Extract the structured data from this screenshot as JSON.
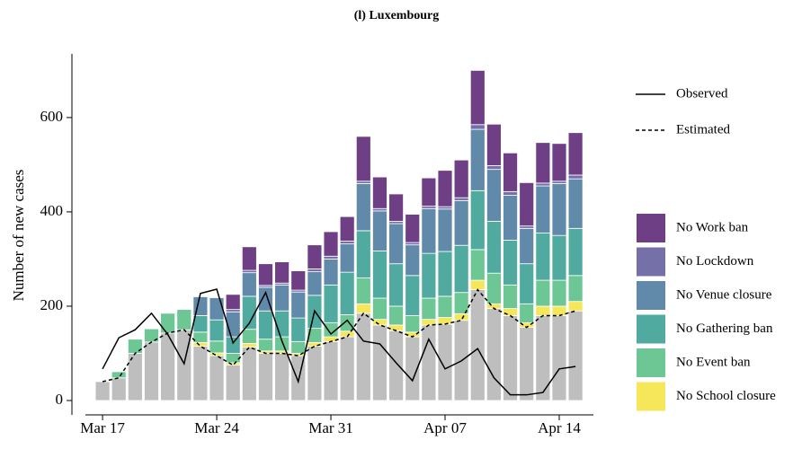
{
  "chart_data": {
    "type": "bar",
    "stacked": true,
    "title": "(l) Luxembourg",
    "y_label": "Number of new cases",
    "categories": [
      "Mar 17",
      null,
      null,
      null,
      null,
      null,
      null,
      "Mar 24",
      null,
      null,
      null,
      null,
      null,
      null,
      "Mar 31",
      null,
      null,
      null,
      null,
      null,
      null,
      "Apr 07",
      null,
      null,
      null,
      null,
      null,
      null,
      "Apr 14",
      null
    ],
    "ylim": [
      -30.5,
      735
    ],
    "yticks": [
      0,
      200,
      400,
      600
    ],
    "series": [
      {
        "color": "#bebebe",
        "values": [
          40,
          48,
          100,
          124,
          143,
          150,
          115,
          95,
          75,
          113,
          100,
          100,
          95,
          115,
          125,
          135,
          185,
          160,
          148,
          135,
          160,
          162,
          170,
          235,
          195,
          180,
          155,
          180,
          180,
          190
        ]
      },
      {
        "name": "No School closure",
        "color": "#f5e65a",
        "values": [
          0,
          0,
          0,
          0,
          0,
          0,
          8,
          6,
          5,
          8,
          5,
          5,
          5,
          8,
          10,
          12,
          20,
          12,
          12,
          10,
          12,
          14,
          14,
          20,
          10,
          15,
          10,
          20,
          20,
          20
        ]
      },
      {
        "name": "No Event ban",
        "color": "#6cc795",
        "values": [
          0,
          13,
          30,
          28,
          42,
          43,
          22,
          25,
          20,
          30,
          25,
          30,
          25,
          30,
          30,
          35,
          55,
          45,
          40,
          35,
          45,
          45,
          45,
          65,
          65,
          50,
          40,
          55,
          55,
          55
        ]
      },
      {
        "name": "No Gathering ban",
        "color": "#50aaa0",
        "values": [
          0,
          0,
          0,
          0,
          0,
          0,
          35,
          45,
          35,
          70,
          60,
          55,
          50,
          70,
          80,
          90,
          100,
          100,
          90,
          85,
          95,
          95,
          100,
          125,
          110,
          95,
          85,
          100,
          95,
          100
        ]
      },
      {
        "name": "No Venue closure",
        "color": "#6189a9",
        "values": [
          0,
          0,
          0,
          0,
          0,
          0,
          40,
          47,
          53,
          50,
          50,
          55,
          55,
          50,
          55,
          60,
          100,
          85,
          85,
          65,
          95,
          90,
          95,
          130,
          110,
          95,
          75,
          100,
          110,
          105
        ]
      },
      {
        "name": "No Lockdown",
        "color": "#7570a8",
        "values": [
          0,
          0,
          0,
          0,
          0,
          0,
          0,
          0,
          5,
          5,
          4,
          4,
          4,
          6,
          6,
          6,
          5,
          5,
          5,
          5,
          5,
          5,
          6,
          10,
          8,
          8,
          5,
          6,
          5,
          8
        ]
      },
      {
        "name": "No Work ban",
        "color": "#6f3f85",
        "values": [
          0,
          0,
          0,
          0,
          0,
          0,
          0,
          0,
          32,
          50,
          46,
          45,
          41,
          51,
          52,
          52,
          95,
          67,
          58,
          60,
          60,
          77,
          80,
          115,
          88,
          82,
          92,
          86,
          80,
          90
        ]
      }
    ],
    "lines": [
      {
        "name": "Observed",
        "dashed": false,
        "color": "#000000",
        "values": [
          67,
          133,
          150,
          185,
          140,
          78,
          227,
          236,
          122,
          164,
          229,
          126,
          40,
          190,
          141,
          170,
          126,
          120,
          80,
          42,
          130,
          67,
          84,
          110,
          48,
          12,
          12,
          17,
          67,
          72
        ]
      },
      {
        "name": "Estimated",
        "dashed": true,
        "color": "#000000",
        "values": [
          40,
          48,
          100,
          124,
          143,
          150,
          115,
          95,
          75,
          113,
          100,
          100,
          95,
          115,
          125,
          135,
          185,
          160,
          148,
          135,
          160,
          162,
          170,
          235,
          195,
          180,
          155,
          180,
          180,
          190
        ]
      }
    ]
  }
}
